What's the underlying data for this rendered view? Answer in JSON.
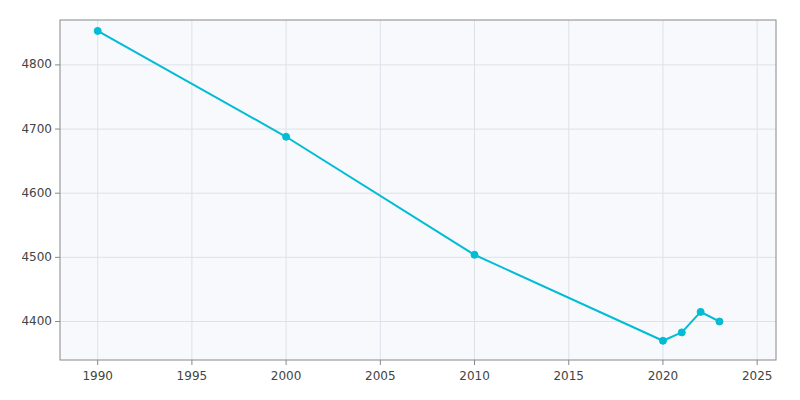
{
  "chart_data": {
    "type": "line",
    "x": [
      1990,
      2000,
      2010,
      2020,
      2021,
      2022,
      2023
    ],
    "values": [
      4853,
      4688,
      4504,
      4370,
      4383,
      4415,
      4400
    ],
    "color": "#00bcd4",
    "marker": "circle",
    "xlim": [
      1988,
      2026
    ],
    "ylim": [
      4340,
      4870
    ],
    "xticks": [
      1990,
      1995,
      2000,
      2005,
      2010,
      2015,
      2020,
      2025
    ],
    "yticks": [
      4400,
      4500,
      4600,
      4700,
      4800
    ],
    "grid": true
  }
}
